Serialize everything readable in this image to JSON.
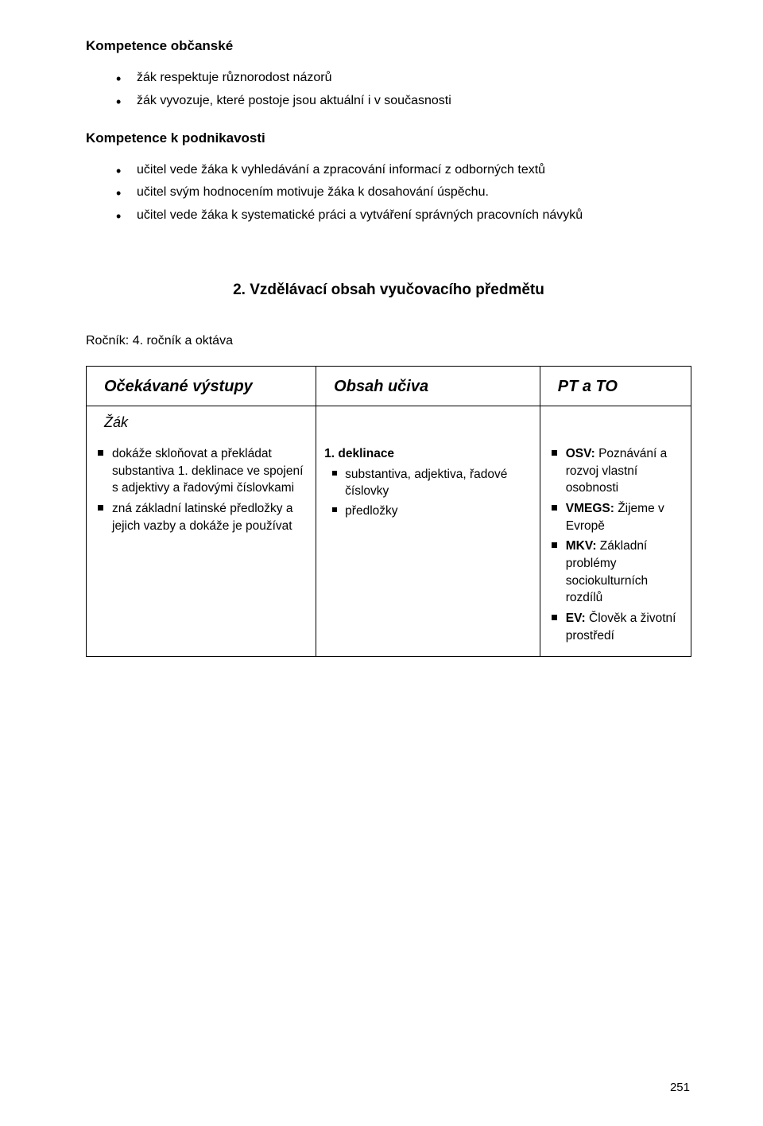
{
  "sections": {
    "kompetence_obcanske": {
      "title": "Kompetence občanské",
      "bullets": [
        "žák respektuje různorodost názorů",
        "žák  vyvozuje, které postoje jsou aktuální i v současnosti"
      ]
    },
    "kompetence_podnikavosti": {
      "title": "Kompetence k podnikavosti",
      "bullets": [
        "učitel vede žáka k vyhledávání a zpracování  informací z odborných textů",
        "učitel  svým hodnocením  motivuje  žáka k dosahování úspěchu.",
        "učitel vede žáka k systematické práci a vytváření správných pracovních návyků"
      ]
    }
  },
  "section_title": "2. Vzdělávací obsah vyučovacího předmětu",
  "rocnik": "Ročník: 4. ročník a oktáva",
  "table": {
    "headers": {
      "col1": "Očekávané  výstupy",
      "col2": "Obsah učiva",
      "col3": "PT a TO"
    },
    "zak": "Žák",
    "col_widths": [
      "38%",
      "37%",
      "25%"
    ],
    "row": {
      "outputs": [
        "dokáže skloňovat a překládat substantiva 1. deklinace ve spojení s adjektivy a řadovými číslovkami",
        "zná základní latinské předložky a jejich vazby a dokáže je používat"
      ],
      "content_title": "1. deklinace",
      "content_items": [
        "substantiva, adjektiva, řadové číslovky",
        "předložky"
      ],
      "pt": [
        {
          "bold": "OSV:",
          "rest": " Poznávání a rozvoj vlastní osobnosti"
        },
        {
          "bold": "VMEGS:",
          "rest": " Žijeme v Evropě"
        },
        {
          "bold": "MKV:",
          "rest": " Základní problémy sociokultur­ních rozdílů"
        },
        {
          "bold": "EV:",
          "rest": " Člověk a životní prostředí"
        }
      ]
    }
  },
  "page_number": "251"
}
